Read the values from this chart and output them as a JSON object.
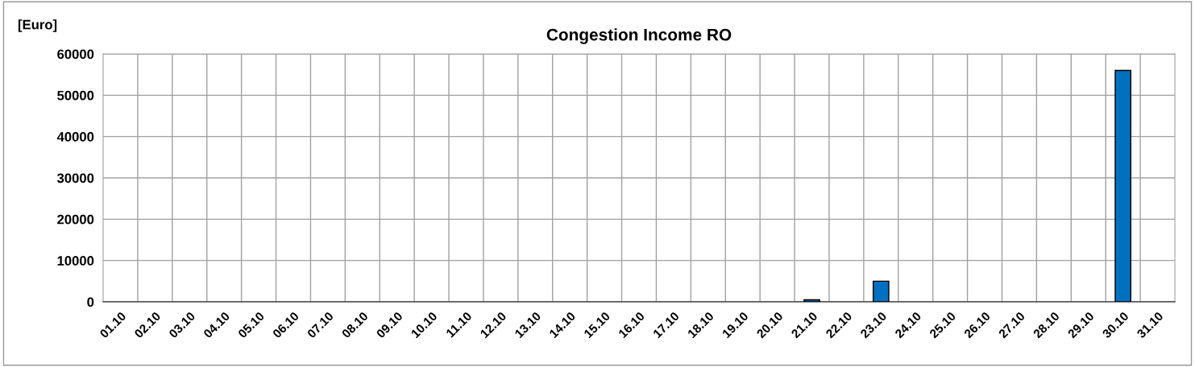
{
  "chart_data": {
    "type": "bar",
    "title": "Congestion Income RO",
    "ylabel": "[Euro]",
    "categories": [
      "01.10",
      "02.10",
      "03.10",
      "04.10",
      "05.10",
      "06.10",
      "07.10",
      "08.10",
      "09.10",
      "10.10",
      "11.10",
      "12.10",
      "13.10",
      "14.10",
      "15.10",
      "16.10",
      "17.10",
      "18.10",
      "19.10",
      "20.10",
      "21.10",
      "22.10",
      "23.10",
      "24.10",
      "25.10",
      "26.10",
      "27.10",
      "28.10",
      "29.10",
      "30.10",
      "31.10"
    ],
    "values": [
      0,
      0,
      0,
      0,
      0,
      0,
      0,
      0,
      0,
      0,
      0,
      0,
      0,
      0,
      0,
      0,
      0,
      0,
      0,
      0,
      500,
      0,
      5000,
      0,
      0,
      0,
      0,
      0,
      0,
      56000,
      0
    ],
    "color": "#0070c0",
    "ylim": [
      0,
      60000
    ],
    "yticks": [
      0,
      10000,
      20000,
      30000,
      40000,
      50000,
      60000
    ],
    "grid": true,
    "legend": false
  }
}
